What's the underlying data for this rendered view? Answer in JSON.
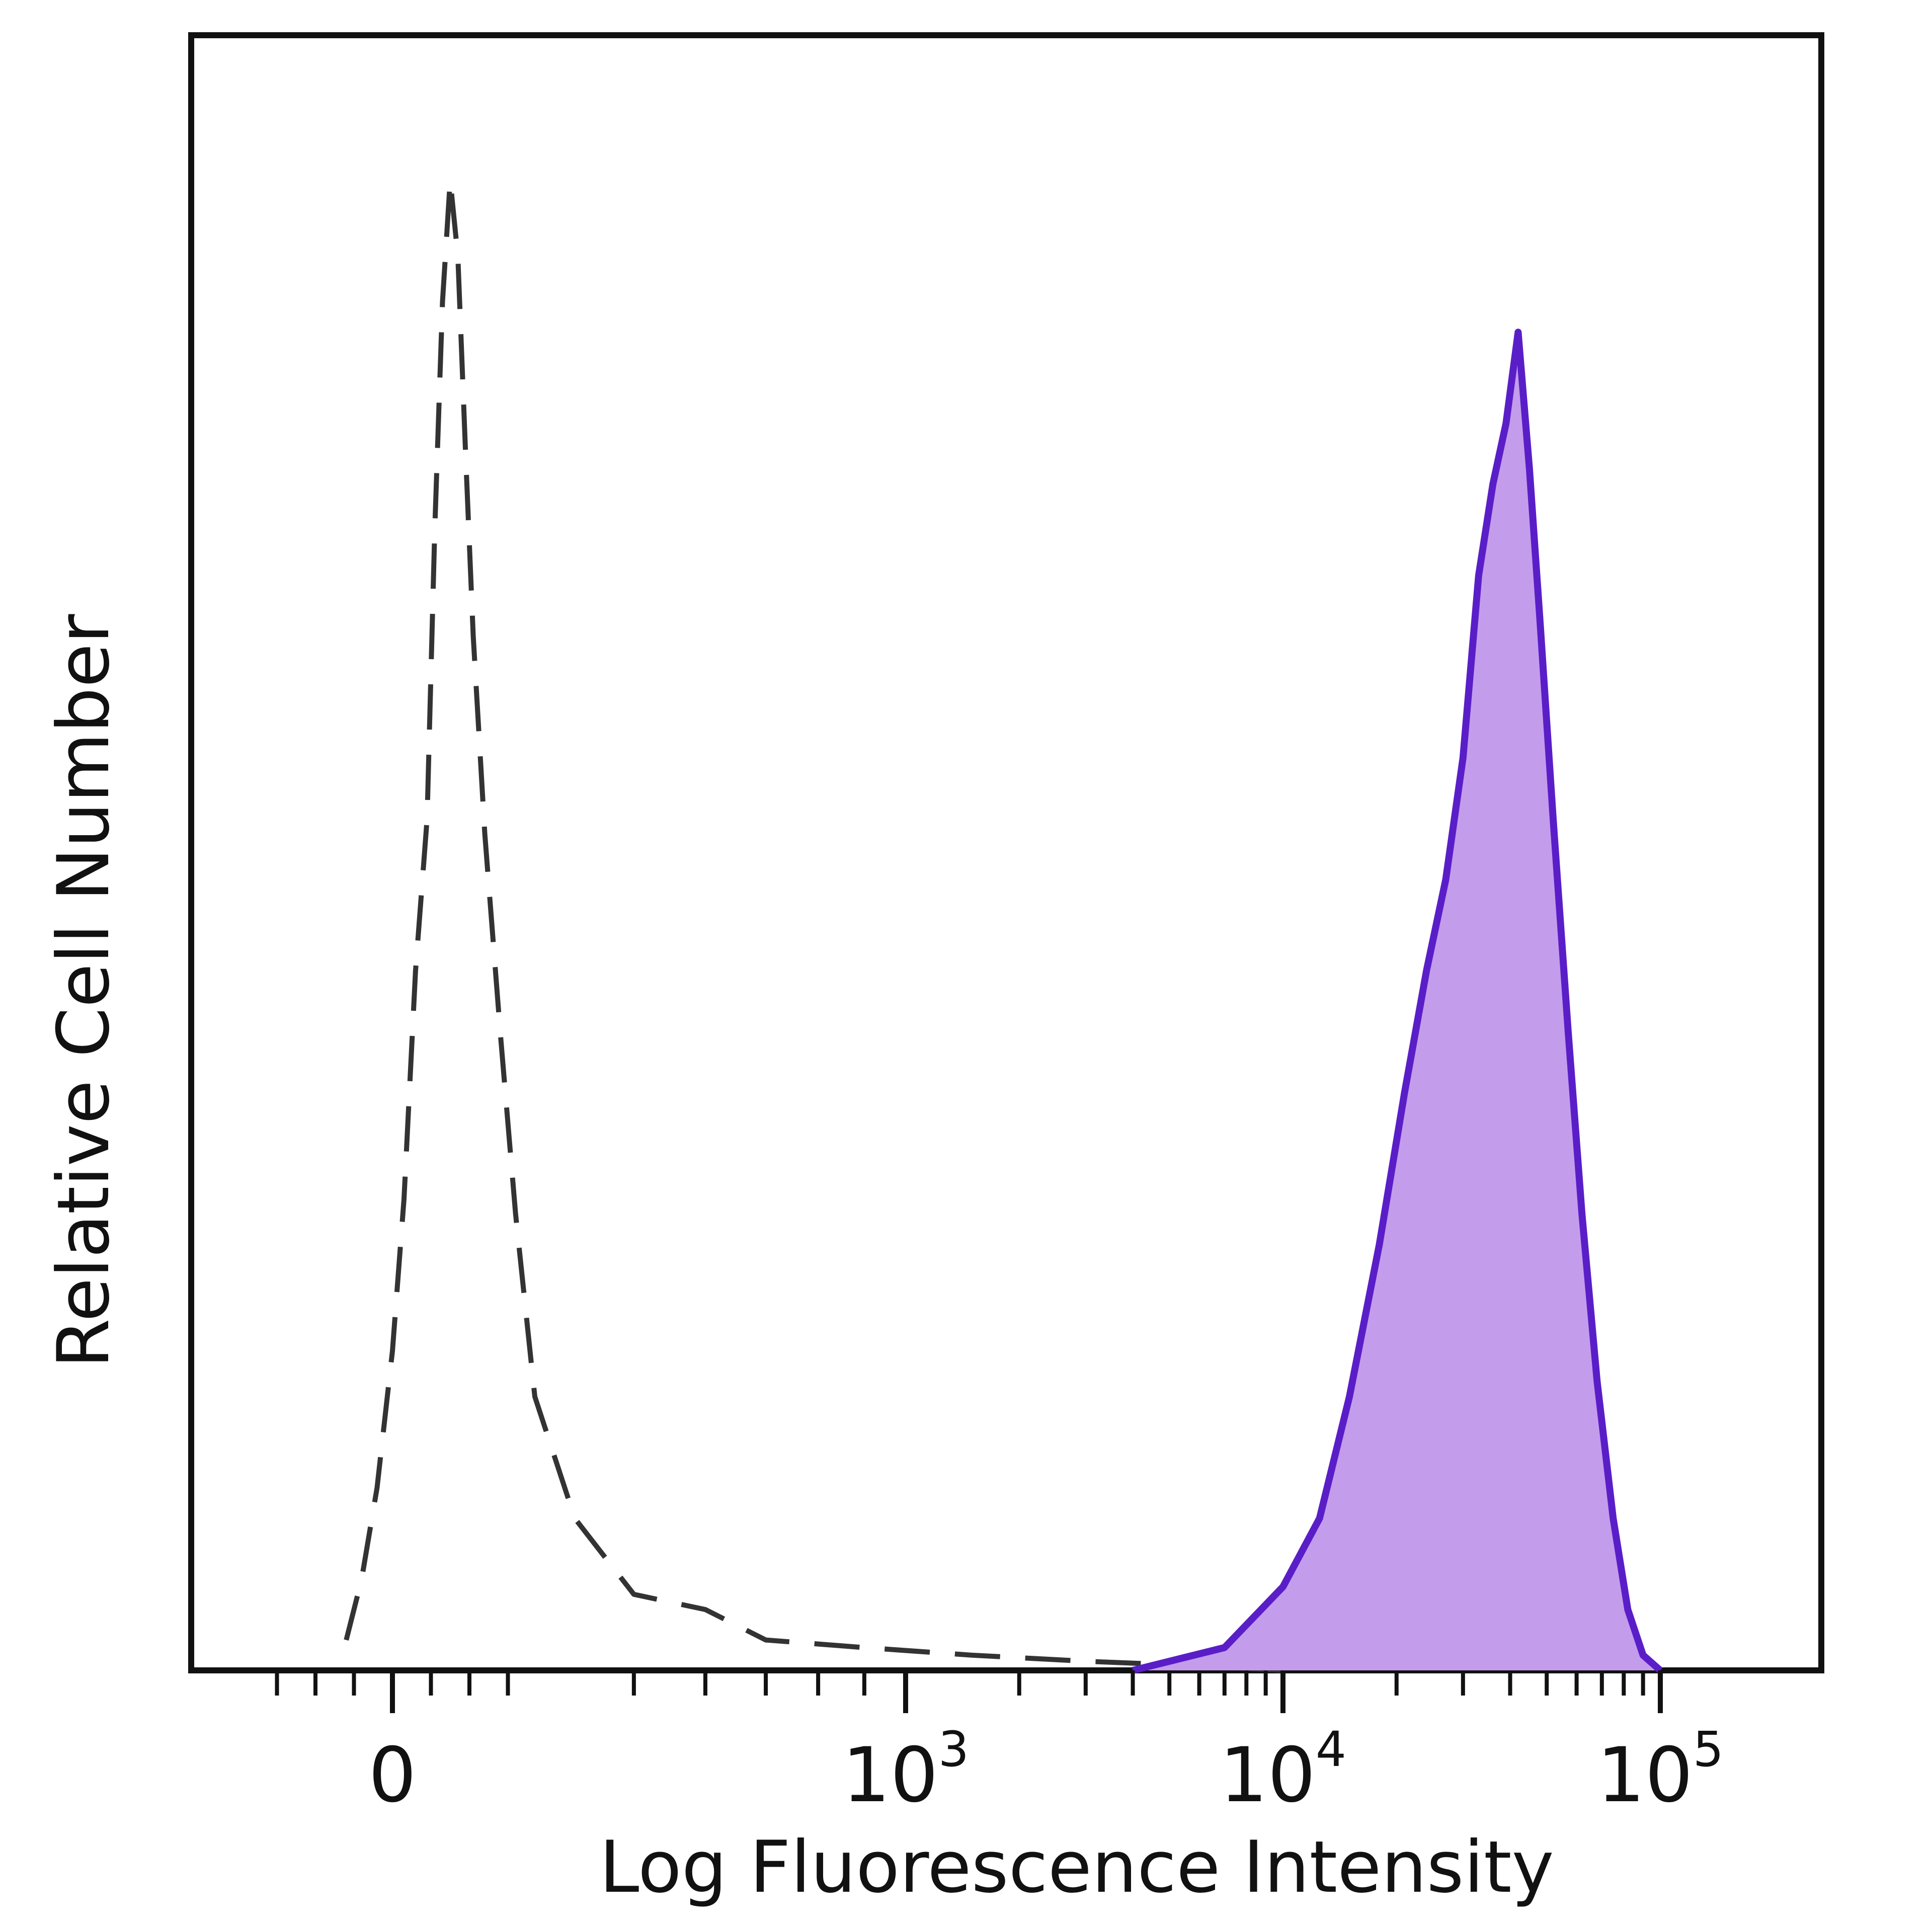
{
  "chart_data": {
    "type": "area",
    "xlabel": "Log Fluorescence Intensity",
    "ylabel": "Relative Cell Number",
    "x_scale": "biexponential (linear near 0, log above)",
    "x_ticks": [
      {
        "value": 0,
        "base": "0",
        "exp": ""
      },
      {
        "value": 1000,
        "base": "10",
        "exp": "3"
      },
      {
        "value": 10000,
        "base": "10",
        "exp": "4"
      },
      {
        "value": 100000,
        "base": "10",
        "exp": "5"
      }
    ],
    "ylim": [
      0,
      100
    ],
    "grid": false,
    "legend": "none",
    "series": [
      {
        "style": "dashed-outline",
        "color": "#333333",
        "points": [
          [
            -120,
            2
          ],
          [
            -80,
            6
          ],
          [
            -40,
            12
          ],
          [
            0,
            21
          ],
          [
            30,
            31
          ],
          [
            60,
            46
          ],
          [
            90,
            56
          ],
          [
            110,
            75
          ],
          [
            130,
            90
          ],
          [
            150,
            98
          ],
          [
            170,
            93
          ],
          [
            190,
            80
          ],
          [
            210,
            68
          ],
          [
            240,
            55
          ],
          [
            280,
            42
          ],
          [
            320,
            30
          ],
          [
            370,
            18
          ],
          [
            430,
            10
          ],
          [
            500,
            5
          ],
          [
            600,
            4
          ],
          [
            700,
            2
          ],
          [
            900,
            1.5
          ],
          [
            1500,
            1
          ],
          [
            3000,
            0.6
          ],
          [
            6000,
            0.3
          ],
          [
            10000,
            0
          ]
        ]
      },
      {
        "style": "filled",
        "color": "#5a1ec8",
        "fill": "#c49cec",
        "points": [
          [
            4000,
            0
          ],
          [
            7000,
            1.5
          ],
          [
            10000,
            5.5
          ],
          [
            12500,
            10
          ],
          [
            15000,
            18
          ],
          [
            18000,
            28
          ],
          [
            21000,
            38
          ],
          [
            24000,
            46
          ],
          [
            27000,
            52
          ],
          [
            30000,
            60
          ],
          [
            33000,
            72
          ],
          [
            36000,
            78
          ],
          [
            39000,
            82
          ],
          [
            42000,
            88
          ],
          [
            45000,
            79
          ],
          [
            48000,
            69
          ],
          [
            52000,
            56
          ],
          [
            57000,
            42
          ],
          [
            62000,
            30
          ],
          [
            68000,
            19
          ],
          [
            75000,
            10
          ],
          [
            82000,
            4
          ],
          [
            90000,
            1
          ],
          [
            100000,
            0
          ]
        ]
      }
    ]
  }
}
